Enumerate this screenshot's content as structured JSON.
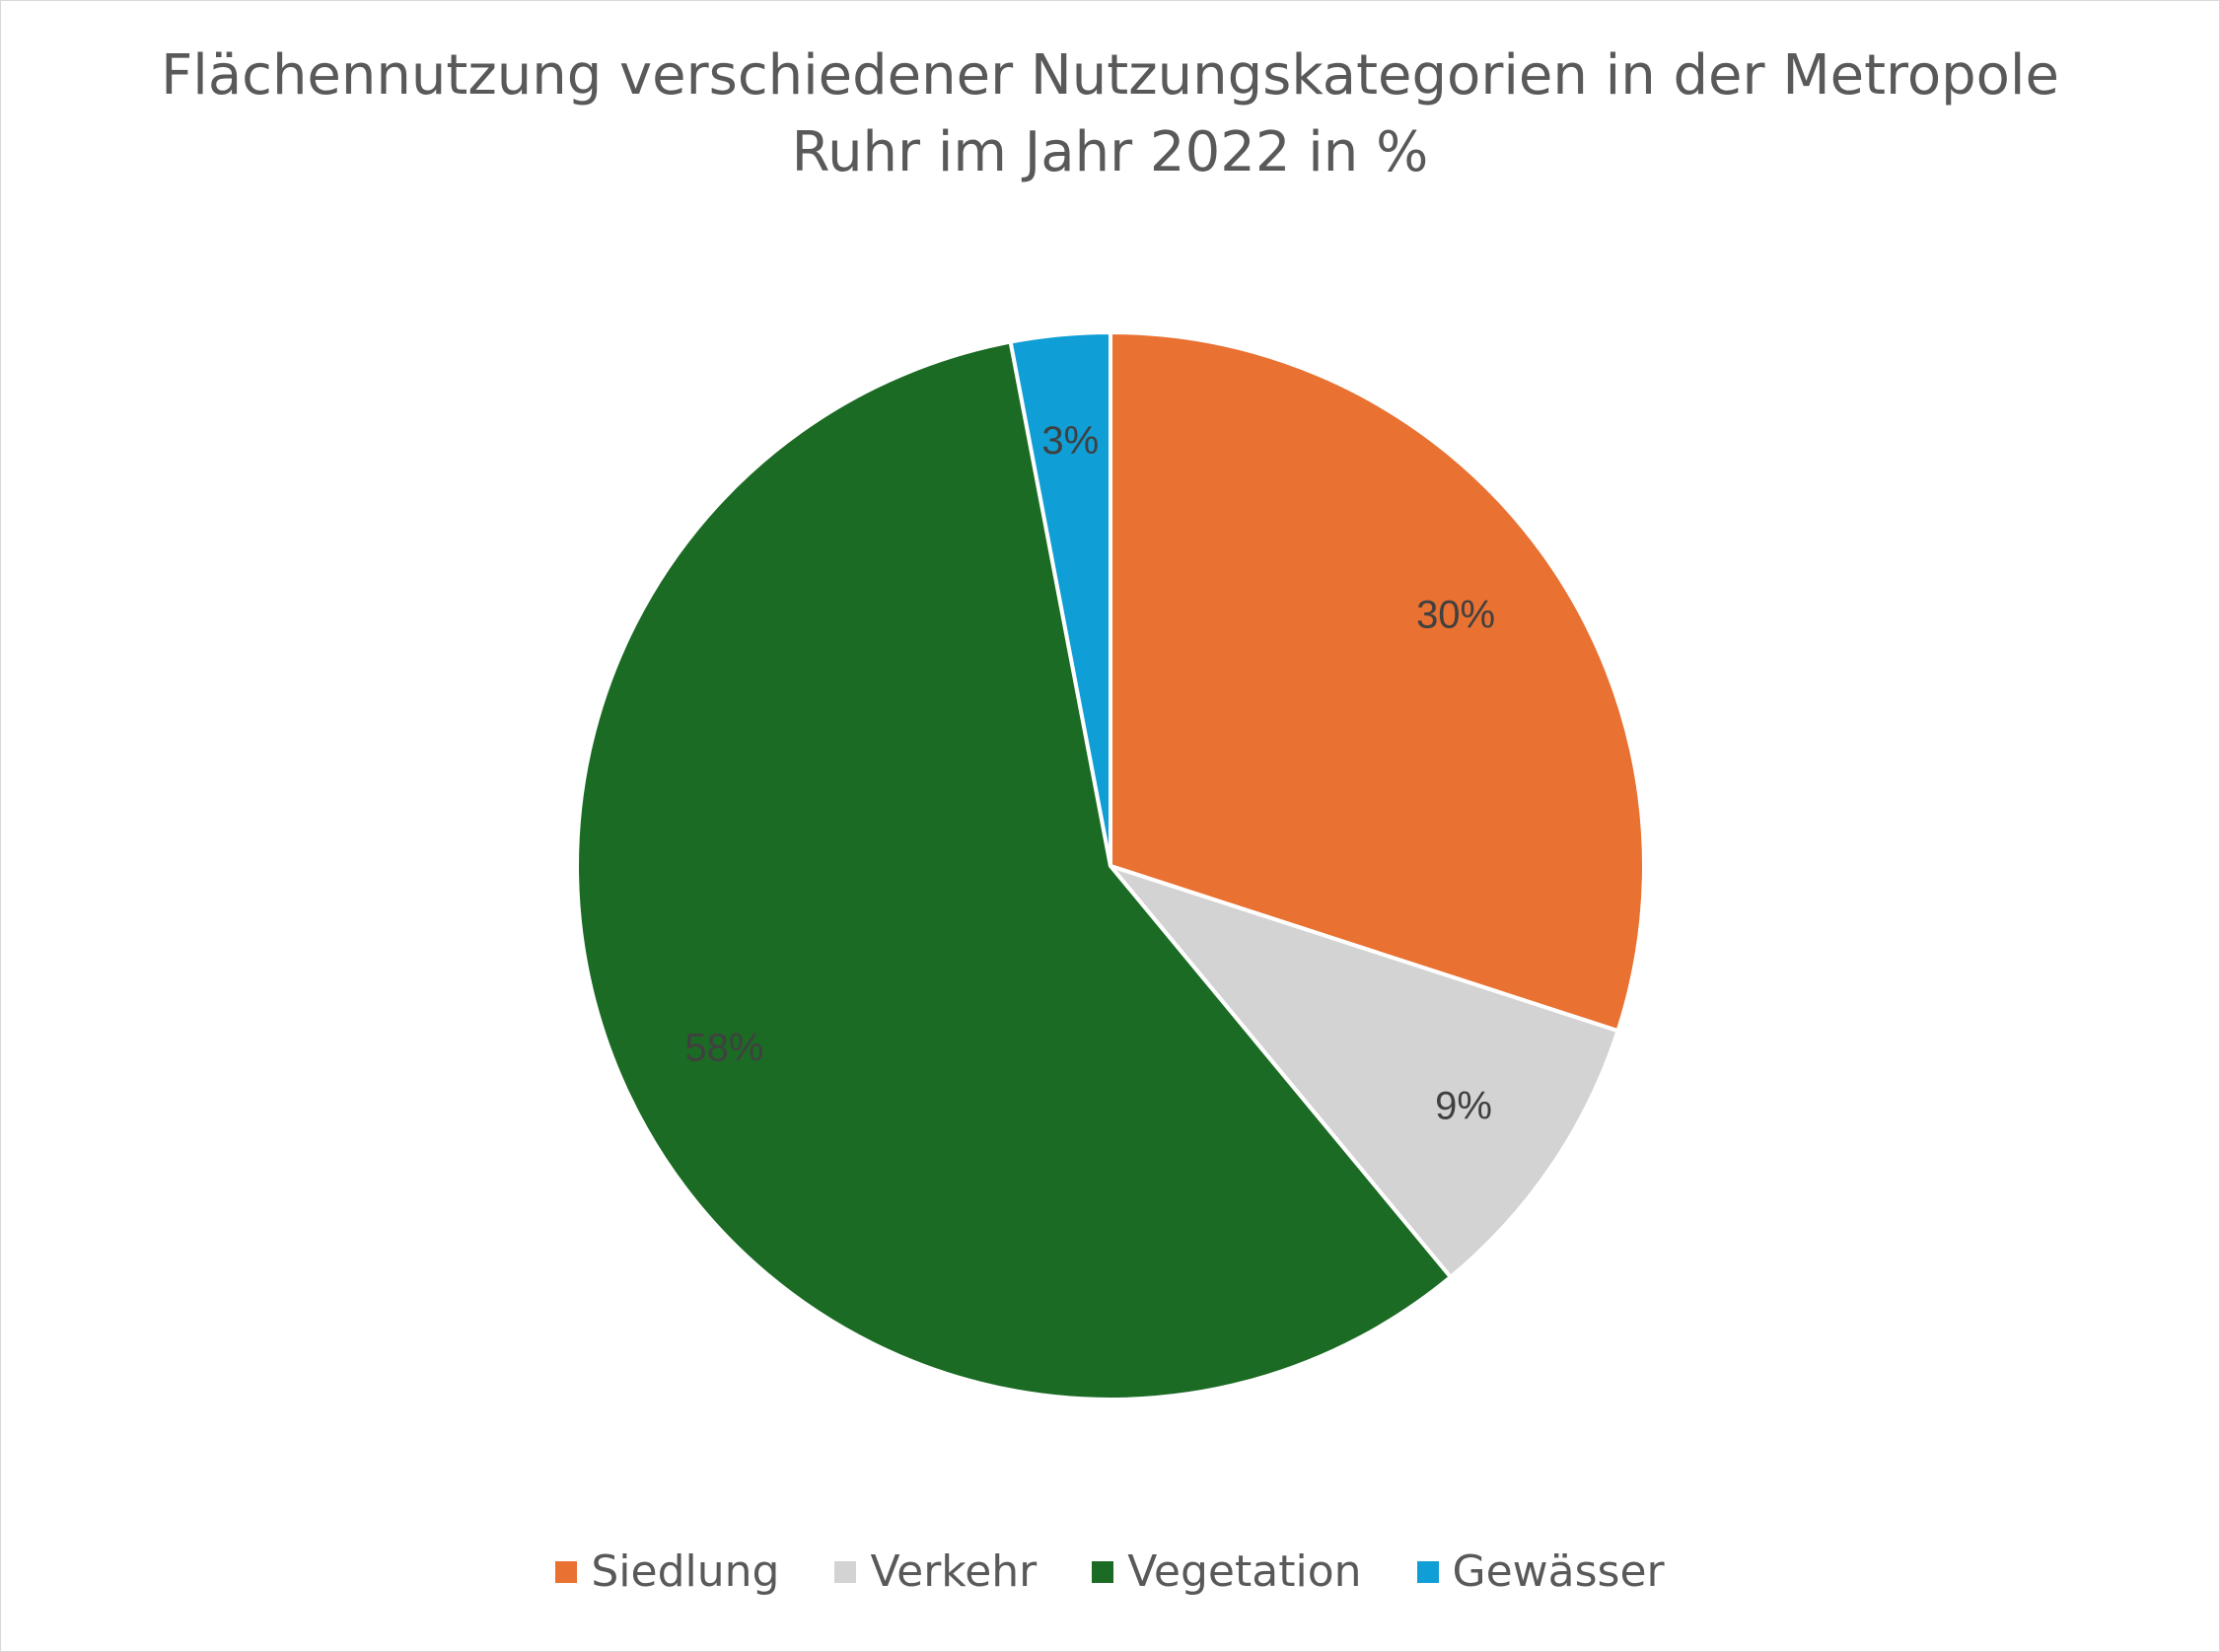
{
  "chart_data": {
    "type": "pie",
    "title": "Flächennutzung verschiedener Nutzungskategorien in der Metropole Ruhr im Jahr 2022 in %",
    "title_lines": [
      "Flächennutzung verschiedener Nutzungskategorien in der Metropole",
      "Ruhr im Jahr 2022 in %"
    ],
    "categories": [
      "Siedlung",
      "Verkehr",
      "Vegetation",
      "Gewässer"
    ],
    "values": [
      30,
      9,
      58,
      3
    ],
    "data_labels": [
      "30%",
      "9%",
      "58%",
      "3%"
    ],
    "colors": [
      "#E97132",
      "#D3D3D3",
      "#1B6B24",
      "#0F9ED5"
    ],
    "label_color": "#404040",
    "start_angle": "12 o'clock",
    "direction": "clockwise",
    "legend_position": "bottom"
  }
}
